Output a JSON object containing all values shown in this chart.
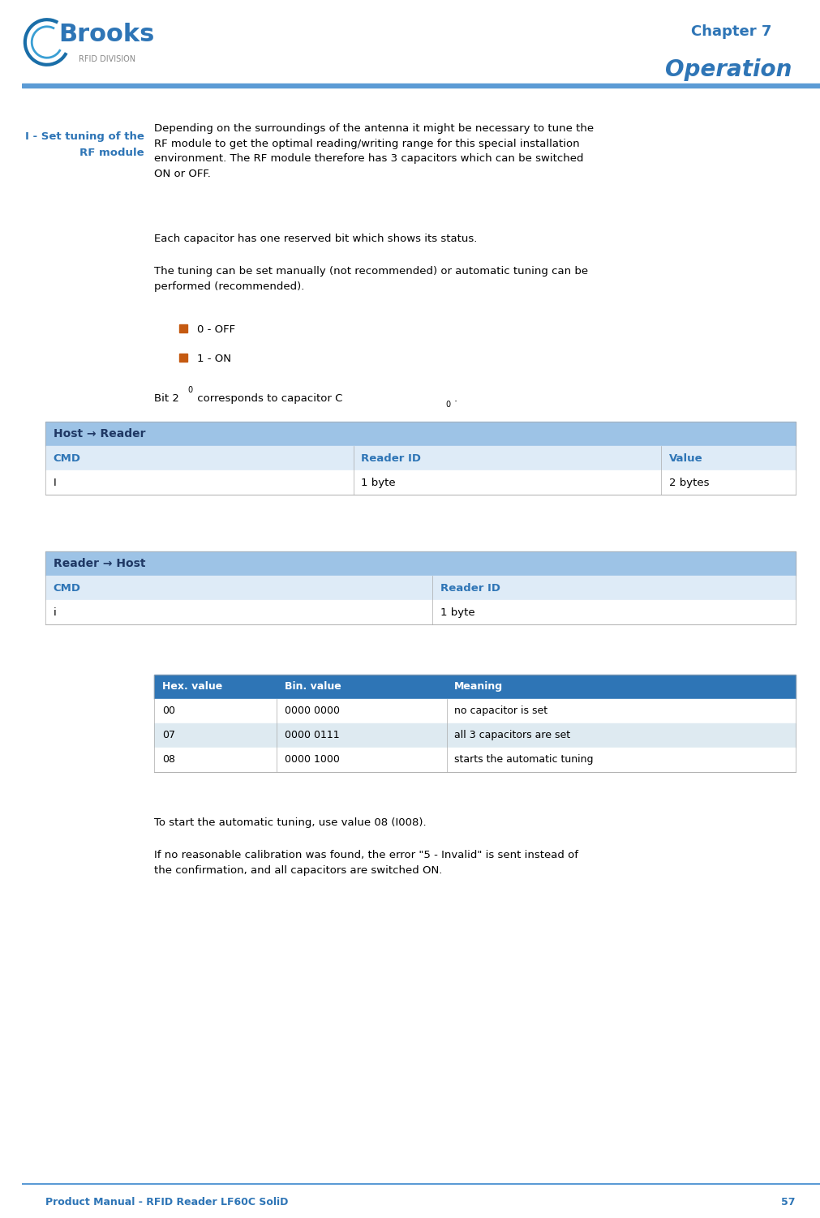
{
  "page_width": 10.11,
  "page_height": 15.02,
  "bg_color": "#ffffff",
  "header_line_color": "#5b9bd5",
  "chapter_text": "Chapter 7",
  "chapter_color": "#2e75b6",
  "operation_text": "Operation",
  "operation_color": "#2e75b6",
  "section_title_line1": "I - Set tuning of the",
  "section_title_line2": "RF module",
  "section_title_color": "#2e75b6",
  "body_text_color": "#000000",
  "para1": "Depending on the surroundings of the antenna it might be necessary to tune the\nRF module to get the optimal reading/writing range for this special installation\nenvironment. The RF module therefore has 3 capacitors which can be switched\nON or OFF.",
  "para2": "Each capacitor has one reserved bit which shows its status.",
  "para3": "The tuning can be set manually (not recommended) or automatic tuning can be\nperformed (recommended).",
  "bullet_color": "#c55a11",
  "bullet1": "0 - OFF",
  "bullet2": "1 - ON",
  "table1_header_bg": "#9dc3e6",
  "table1_header_text": "Host → Reader",
  "table1_header_color": "#1f3864",
  "table1_col_header_bg": "#deebf7",
  "table1_col_header_color": "#2e75b6",
  "table1_cols": [
    "CMD",
    "Reader ID",
    "Value"
  ],
  "table1_row": [
    "I",
    "1 byte",
    "2 bytes"
  ],
  "table2_header_text": "Reader → Host",
  "table2_cols": [
    "CMD",
    "Reader ID"
  ],
  "table2_row": [
    "i",
    "1 byte"
  ],
  "table3_header_bg": "#2e75b6",
  "table3_header_color": "#ffffff",
  "table3_cols": [
    "Hex. value",
    "Bin. value",
    "Meaning"
  ],
  "table3_rows": [
    [
      "00",
      "0000 0000",
      "no capacitor is set"
    ],
    [
      "07",
      "0000 0111",
      "all 3 capacitors are set"
    ],
    [
      "08",
      "0000 1000",
      "starts the automatic tuning"
    ]
  ],
  "table3_row_bg_odd": "#ffffff",
  "table3_row_bg_even": "#deeaf1",
  "para4": "To start the automatic tuning, use value 08 (I008).",
  "para5": "If no reasonable calibration was found, the error \"5 - Invalid\" is sent instead of\nthe confirmation, and all capacitors are switched ON.",
  "footer_text": "Product Manual - RFID Reader LF60C SoliD",
  "footer_page": "57",
  "footer_color": "#2e75b6",
  "top_bar_color": "#5b9bd5",
  "logo_text": "Brooks",
  "logo_color": "#2e75b6",
  "logo_sub": "RFID DIVISION",
  "logo_sub_color": "#888888",
  "divider_color": "#aaaaaa"
}
